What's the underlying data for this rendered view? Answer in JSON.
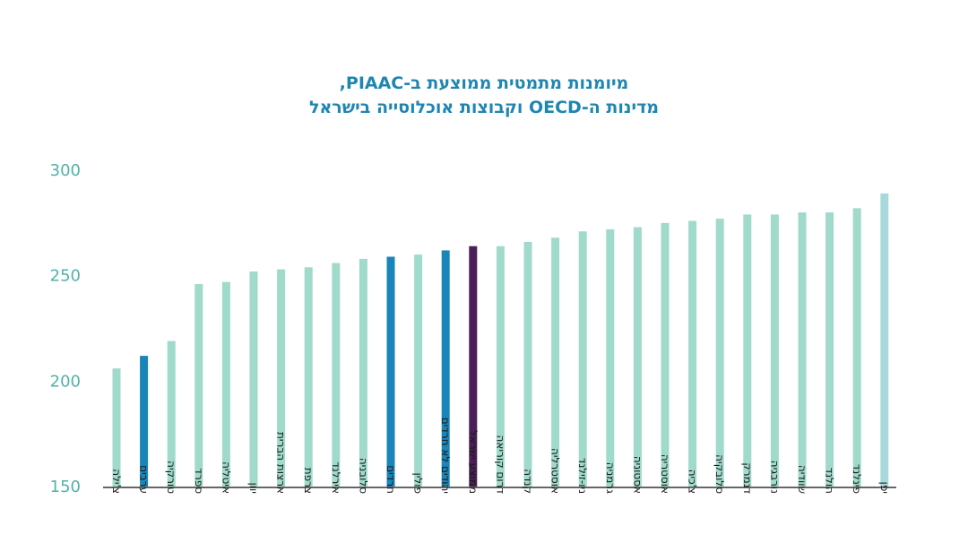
{
  "chart_data": {
    "type": "bar",
    "title_line1": "מיומנות מתמטית ממוצעת ב-PIAAC,",
    "title_line2": "מדינות ה-OECD וקבוצות אוכלוסייה בישראל",
    "ylim": [
      150,
      300
    ],
    "yticks": [
      150,
      200,
      250,
      300
    ],
    "grid": false,
    "categories": [
      "צ'ילה",
      "ערבים",
      "טורקיה",
      "ספרד",
      "איטליה",
      "יוון",
      "ארצות הברית",
      "צרפת",
      "אירלנד",
      "סלובניה",
      "חרדים",
      "פולין",
      "יהודים לא חרדים",
      "ממוצע ישראל",
      "דרום קוריאה",
      "קנדה",
      "אוסטרליה",
      "ניו-זילנד",
      "גרמניה",
      "אסטוניה",
      "אוסטריה",
      "צ'כיה",
      "סלובקיה",
      "דנמרק",
      "נורבגיה",
      "שוודיה",
      "הולנד",
      "פינלנד",
      "יפן"
    ],
    "values": [
      206,
      212,
      219,
      246,
      247,
      252,
      253,
      254,
      256,
      258,
      259,
      260,
      262,
      264,
      264,
      266,
      268,
      271,
      272,
      273,
      275,
      276,
      277,
      279,
      279,
      280,
      280,
      282,
      289
    ],
    "bar_colors": [
      "#9fdacb",
      "#1a85b8",
      "#9fdacb",
      "#9fdacb",
      "#9fdacb",
      "#9fdacb",
      "#9fdacb",
      "#9fdacb",
      "#9fdacb",
      "#9fdacb",
      "#1a85b8",
      "#9fdacb",
      "#1a85b8",
      "#4a1f55",
      "#9fdacb",
      "#9fdacb",
      "#9fdacb",
      "#9fdacb",
      "#9fdacb",
      "#9fdacb",
      "#9fdacb",
      "#9fdacb",
      "#9fdacb",
      "#9fdacb",
      "#9fdacb",
      "#9fdacb",
      "#9fdacb",
      "#9fdacb",
      "#a8d8dc"
    ]
  }
}
